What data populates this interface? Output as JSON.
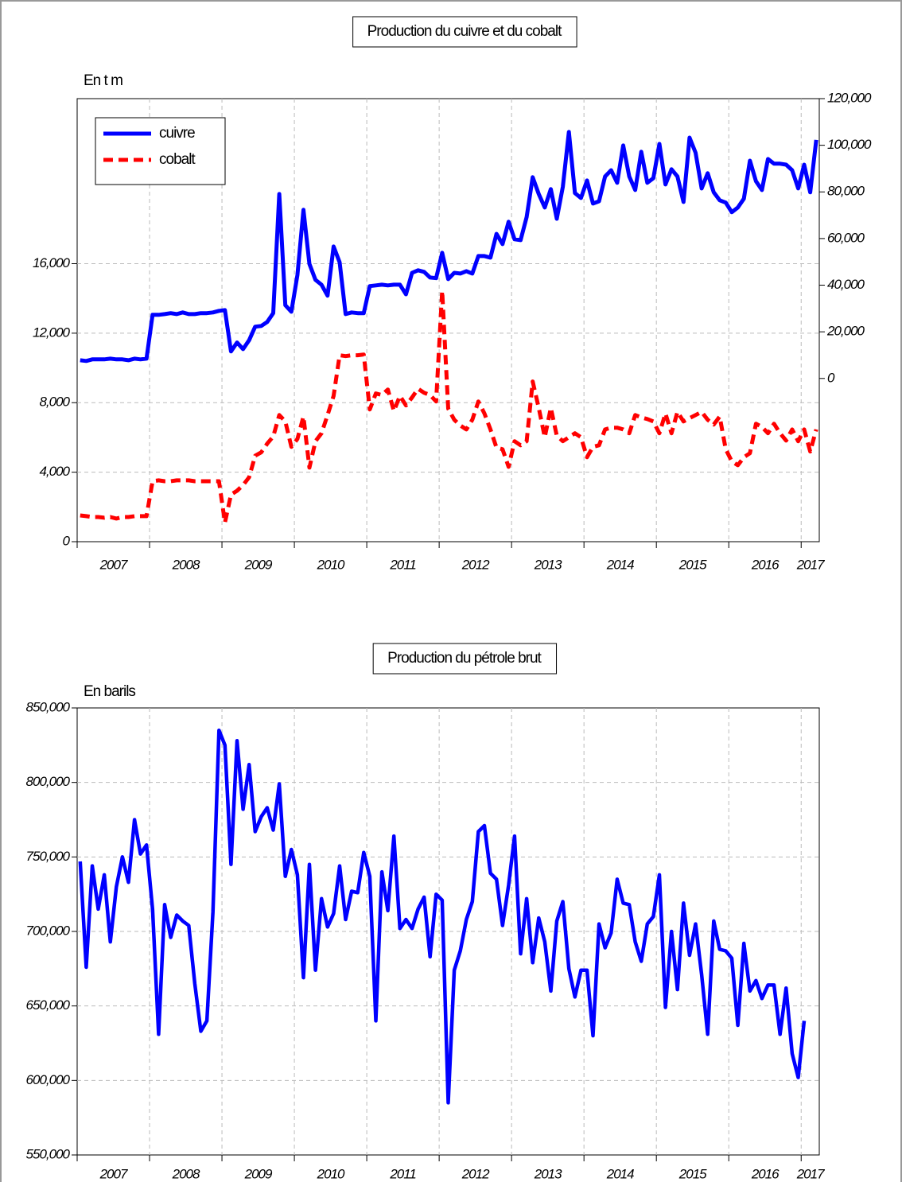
{
  "chart_data": [
    {
      "type": "line",
      "title": "Production du cuivre et du cobalt",
      "ylabel": "En t m",
      "categories": [
        "2007",
        null,
        null,
        null,
        null,
        null,
        null,
        null,
        null,
        null,
        null,
        null,
        "2008",
        null,
        null,
        null,
        null,
        null,
        null,
        null,
        null,
        null,
        null,
        null,
        "2009",
        null,
        null,
        null,
        null,
        null,
        null,
        null,
        null,
        null,
        null,
        null,
        "2010",
        null,
        null,
        null,
        null,
        null,
        null,
        null,
        null,
        null,
        null,
        null,
        "2011",
        null,
        null,
        null,
        null,
        null,
        null,
        null,
        null,
        null,
        null,
        null,
        "2012",
        null,
        null,
        null,
        null,
        null,
        null,
        null,
        null,
        null,
        null,
        null,
        "2013",
        null,
        null,
        null,
        null,
        null,
        null,
        null,
        null,
        null,
        null,
        null,
        "2014",
        null,
        null,
        null,
        null,
        null,
        null,
        null,
        null,
        null,
        null,
        null,
        "2015",
        null,
        null,
        null,
        null,
        null,
        null,
        null,
        null,
        null,
        null,
        null,
        "2016",
        null,
        null,
        null,
        null,
        null,
        null,
        null,
        null,
        null,
        null,
        null,
        "2017",
        null,
        null
      ],
      "series": [
        {
          "name": "cuivre",
          "color": "#0000ff",
          "axis": "y2",
          "style": "solid",
          "values": [
            7800,
            7500,
            8200,
            8200,
            8200,
            8500,
            8200,
            8200,
            7800,
            8500,
            8200,
            8500,
            27300,
            27300,
            27600,
            28000,
            27600,
            28300,
            27600,
            27600,
            28000,
            28000,
            28300,
            29000,
            29300,
            11600,
            15400,
            12600,
            16400,
            22200,
            22500,
            24200,
            28000,
            79100,
            31400,
            28600,
            44300,
            72300,
            49100,
            42300,
            40200,
            35500,
            56600,
            49800,
            27600,
            28300,
            28000,
            28000,
            39600,
            39900,
            40200,
            39900,
            40200,
            40200,
            36100,
            45300,
            46400,
            45700,
            43300,
            43000,
            53900,
            42600,
            45300,
            45000,
            46000,
            45000,
            52500,
            52500,
            51800,
            62000,
            57600,
            67200,
            59700,
            59300,
            69200,
            86300,
            79100,
            73300,
            81200,
            68500,
            82200,
            105700,
            79500,
            77400,
            84900,
            75000,
            76000,
            86600,
            89300,
            83900,
            99900,
            86600,
            80800,
            97200,
            83900,
            85900,
            100600,
            83200,
            89700,
            86600,
            75700,
            103300,
            96800,
            81500,
            88000,
            79800,
            76400,
            75400,
            71300,
            73300,
            77100,
            93400,
            84600,
            80800,
            94100,
            92100,
            92100,
            91700,
            89300,
            81500,
            91700,
            79800,
            102300
          ]
        },
        {
          "name": "cobalt",
          "color": "#ff0000",
          "style": "dashed",
          "values": [
            1510,
            1470,
            1420,
            1420,
            1380,
            1420,
            1330,
            1420,
            1420,
            1470,
            1470,
            1470,
            3480,
            3530,
            3480,
            3480,
            3530,
            3530,
            3530,
            3480,
            3480,
            3480,
            3480,
            3480,
            1100,
            2710,
            2930,
            3260,
            3710,
            4950,
            5140,
            5640,
            6050,
            7290,
            6920,
            5460,
            5910,
            7200,
            4260,
            5780,
            6240,
            7290,
            8390,
            10730,
            10680,
            10730,
            10730,
            10770,
            7610,
            8530,
            8440,
            8760,
            7520,
            8390,
            7840,
            8300,
            8800,
            8570,
            8440,
            8070,
            14440,
            7660,
            7020,
            6690,
            6460,
            7020,
            8070,
            7380,
            6460,
            5410,
            5320,
            4310,
            5780,
            5550,
            5780,
            9220,
            7700,
            6010,
            7700,
            6100,
            5780,
            6010,
            6240,
            6010,
            4860,
            5460,
            5550,
            6460,
            6560,
            6560,
            6460,
            6240,
            7290,
            7150,
            7060,
            6920,
            6240,
            7380,
            6240,
            7470,
            6920,
            7110,
            7290,
            7470,
            7020,
            6740,
            7200,
            5320,
            4630,
            4400,
            4860,
            5090,
            6790,
            6600,
            6240,
            6790,
            6240,
            5820,
            6460,
            5780,
            6460,
            5190,
            6460
          ]
        }
      ],
      "ylim": [
        0,
        25500
      ],
      "yticks": [
        0,
        {
          "value": 4000,
          "label": "4,000"
        },
        {
          "value": 8000,
          "label": "8,000"
        },
        {
          "value": 12000,
          "label": "12,000"
        },
        {
          "value": 16000,
          "label": "16,000"
        }
      ],
      "y2lim": [
        -70000,
        120000
      ],
      "y2ticks": [
        0,
        {
          "value": 20000,
          "label": "20,000"
        },
        {
          "value": 40000,
          "label": "40,000"
        },
        {
          "value": 60000,
          "label": "60,000"
        },
        {
          "value": 80000,
          "label": "80,000"
        },
        {
          "value": 100000,
          "label": "100,000"
        },
        {
          "value": 120000,
          "label": "120,000"
        }
      ],
      "grid": true,
      "legend": "upper left"
    },
    {
      "type": "line",
      "title": "Production du pétrole brut",
      "ylabel": "En barils",
      "categories": [
        "2007",
        null,
        null,
        null,
        null,
        null,
        null,
        null,
        null,
        null,
        null,
        null,
        "2008",
        null,
        null,
        null,
        null,
        null,
        null,
        null,
        null,
        null,
        null,
        null,
        "2009",
        null,
        null,
        null,
        null,
        null,
        null,
        null,
        null,
        null,
        null,
        null,
        "2010",
        null,
        null,
        null,
        null,
        null,
        null,
        null,
        null,
        null,
        null,
        null,
        "2011",
        null,
        null,
        null,
        null,
        null,
        null,
        null,
        null,
        null,
        null,
        null,
        "2012",
        null,
        null,
        null,
        null,
        null,
        null,
        null,
        null,
        null,
        null,
        null,
        "2013",
        null,
        null,
        null,
        null,
        null,
        null,
        null,
        null,
        null,
        null,
        null,
        "2014",
        null,
        null,
        null,
        null,
        null,
        null,
        null,
        null,
        null,
        null,
        null,
        "2015",
        null,
        null,
        null,
        null,
        null,
        null,
        null,
        null,
        null,
        null,
        null,
        "2016",
        null,
        null,
        null,
        null,
        null,
        null,
        null,
        null,
        null,
        null,
        null,
        "2017",
        null,
        null
      ],
      "color": "#0000ff",
      "values": [
        747000,
        676000,
        744000,
        715000,
        738000,
        693000,
        730000,
        750000,
        733000,
        775000,
        752000,
        758000,
        715000,
        631000,
        718000,
        696000,
        711000,
        707000,
        704000,
        665000,
        633000,
        640000,
        713000,
        835000,
        825000,
        745000,
        828000,
        782000,
        812000,
        767000,
        777000,
        783000,
        768000,
        799000,
        737000,
        755000,
        738000,
        669000,
        745000,
        674000,
        722000,
        703000,
        712000,
        744000,
        708000,
        727000,
        726000,
        753000,
        737000,
        640000,
        740000,
        714000,
        764000,
        702000,
        708000,
        702000,
        715000,
        723000,
        683000,
        725000,
        721000,
        585000,
        674000,
        687000,
        708000,
        720000,
        767000,
        771000,
        739000,
        735000,
        704000,
        731000,
        764000,
        685000,
        722000,
        679000,
        709000,
        693000,
        660000,
        707000,
        720000,
        675000,
        656000,
        674000,
        674000,
        630000,
        705000,
        689000,
        699000,
        735000,
        719000,
        718000,
        693000,
        680000,
        705000,
        710000,
        738000,
        649000,
        700000,
        661000,
        719000,
        684000,
        705000,
        671000,
        631000,
        707000,
        688000,
        687000,
        682000,
        637000,
        692000,
        660000,
        667000,
        655000,
        664000,
        664000,
        631000,
        662000,
        618000,
        602000,
        640000,
        null,
        null
      ],
      "ylim": [
        550000,
        850000
      ],
      "yticks": [
        {
          "value": 550000,
          "label": "550,000"
        },
        {
          "value": 600000,
          "label": "600,000"
        },
        {
          "value": 650000,
          "label": "650,000"
        },
        {
          "value": 700000,
          "label": "700,000"
        },
        {
          "value": 750000,
          "label": "750,000"
        },
        {
          "value": 800000,
          "label": "800,000"
        },
        {
          "value": 850000,
          "label": "850,000"
        }
      ],
      "grid": true
    }
  ]
}
